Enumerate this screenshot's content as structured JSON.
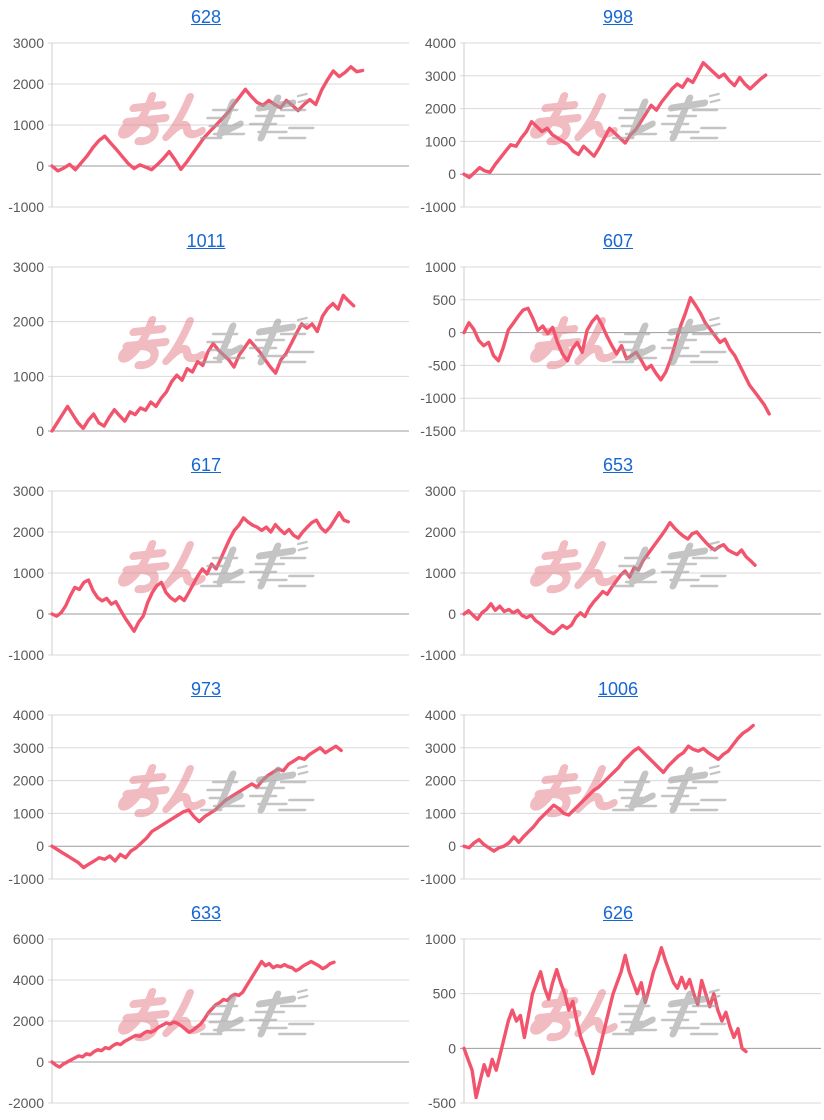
{
  "page": {
    "background": "#ffffff",
    "description": "grid of payout line graphs per machine number"
  },
  "palette": {
    "line_color": "#f2546d",
    "link_color": "#1767d2",
    "axis_label_color": "#595959",
    "gridline_color": "#dadada",
    "zero_line_color": "#9b9b9b",
    "axis_line_color": "#cccccc",
    "watermark_pink": "#e4858f",
    "watermark_gray": "#9e9e9e"
  },
  "watermark": {
    "name": "minrepo-logo-watermark",
    "text": "みんレポ"
  },
  "chart_data": [
    {
      "type": "line",
      "title": "628",
      "machine_no": "628",
      "grid": true,
      "ylim": [
        -1000,
        3000
      ],
      "yticks": [
        3000,
        2000,
        1000,
        0,
        -1000
      ],
      "x_span": 0.87,
      "values": [
        0,
        -120,
        -50,
        40,
        -90,
        80,
        250,
        450,
        620,
        730,
        560,
        400,
        230,
        60,
        -60,
        30,
        -30,
        -90,
        40,
        180,
        350,
        150,
        -80,
        100,
        300,
        500,
        700,
        850,
        1000,
        1150,
        1300,
        1500,
        1680,
        1870,
        1700,
        1550,
        1480,
        1600,
        1500,
        1420,
        1600,
        1480,
        1350,
        1500,
        1620,
        1500,
        1850,
        2100,
        2320,
        2180,
        2280,
        2420,
        2300,
        2330
      ]
    },
    {
      "type": "line",
      "title": "998",
      "machine_no": "998",
      "grid": true,
      "ylim": [
        -1000,
        4000
      ],
      "yticks": [
        4000,
        3000,
        2000,
        1000,
        0,
        -1000
      ],
      "x_span": 0.845,
      "values": [
        0,
        -100,
        50,
        200,
        100,
        60,
        300,
        500,
        700,
        900,
        850,
        1100,
        1300,
        1600,
        1450,
        1300,
        1400,
        1200,
        1100,
        1000,
        900,
        700,
        600,
        850,
        700,
        550,
        800,
        1100,
        1400,
        1250,
        1100,
        950,
        1200,
        1350,
        1600,
        1850,
        2100,
        1950,
        2200,
        2400,
        2600,
        2750,
        2650,
        2900,
        2800,
        3100,
        3400,
        3250,
        3100,
        2950,
        3050,
        2850,
        2700,
        2950,
        2750,
        2600,
        2750,
        2900,
        3020
      ]
    },
    {
      "type": "line",
      "title": "1011",
      "machine_no": "1011",
      "grid": true,
      "ylim": [
        0,
        3000
      ],
      "yticks": [
        3000,
        2000,
        1000,
        0
      ],
      "x_span": 0.845,
      "values": [
        0,
        150,
        300,
        450,
        300,
        150,
        50,
        200,
        310,
        150,
        90,
        250,
        390,
        280,
        180,
        350,
        300,
        420,
        380,
        530,
        450,
        600,
        715,
        900,
        1020,
        930,
        1140,
        1080,
        1270,
        1200,
        1450,
        1600,
        1480,
        1390,
        1300,
        1170,
        1390,
        1520,
        1660,
        1550,
        1440,
        1300,
        1170,
        1060,
        1300,
        1420,
        1600,
        1790,
        1960,
        1880,
        1960,
        1820,
        2100,
        2240,
        2330,
        2230,
        2480,
        2380,
        2290
      ]
    },
    {
      "type": "line",
      "title": "607",
      "machine_no": "607",
      "grid": true,
      "ylim": [
        -1500,
        1000
      ],
      "yticks": [
        1000,
        500,
        0,
        -500,
        -1000,
        -1500
      ],
      "x_span": 0.855,
      "values": [
        0,
        150,
        50,
        -120,
        -200,
        -150,
        -350,
        -430,
        -220,
        40,
        140,
        250,
        345,
        370,
        215,
        35,
        100,
        -15,
        80,
        -150,
        -325,
        -430,
        -250,
        -150,
        -300,
        35,
        165,
        250,
        120,
        -50,
        -195,
        -325,
        -200,
        -400,
        -350,
        -300,
        -420,
        -560,
        -500,
        -620,
        -720,
        -600,
        -400,
        -150,
        100,
        300,
        530,
        420,
        300,
        150,
        50,
        -50,
        -150,
        -100,
        -250,
        -350,
        -500,
        -650,
        -800,
        -900,
        -1000,
        -1100,
        -1240
      ]
    },
    {
      "type": "line",
      "title": "617",
      "machine_no": "617",
      "grid": true,
      "ylim": [
        -1000,
        3000
      ],
      "yticks": [
        3000,
        2000,
        1000,
        0,
        -1000
      ],
      "x_span": 0.83,
      "values": [
        0,
        -50,
        30,
        200,
        440,
        650,
        600,
        770,
        830,
        570,
        400,
        320,
        380,
        240,
        300,
        100,
        -90,
        -255,
        -420,
        -200,
        -50,
        280,
        525,
        690,
        770,
        525,
        400,
        320,
        420,
        330,
        525,
        730,
        935,
        1100,
        975,
        1220,
        1100,
        1345,
        1590,
        1835,
        2040,
        2165,
        2345,
        2245,
        2165,
        2120,
        2040,
        2120,
        2000,
        2180,
        2060,
        1960,
        2060,
        1920,
        1850,
        2000,
        2120,
        2230,
        2290,
        2100,
        2000,
        2120,
        2290,
        2470,
        2290,
        2250
      ]
    },
    {
      "type": "line",
      "title": "653",
      "machine_no": "653",
      "grid": true,
      "ylim": [
        -1000,
        3000
      ],
      "yticks": [
        3000,
        2000,
        1000,
        0,
        -1000
      ],
      "x_span": 0.815,
      "values": [
        0,
        80,
        -30,
        -130,
        30,
        110,
        250,
        90,
        190,
        60,
        110,
        30,
        90,
        -40,
        -90,
        -30,
        -160,
        -240,
        -330,
        -430,
        -480,
        -380,
        -280,
        -350,
        -270,
        -80,
        30,
        -60,
        150,
        300,
        420,
        550,
        480,
        650,
        800,
        950,
        1050,
        900,
        1130,
        1080,
        1300,
        1450,
        1600,
        1750,
        1900,
        2050,
        2230,
        2100,
        1990,
        1900,
        1830,
        1960,
        2000,
        1870,
        1750,
        1640,
        1560,
        1640,
        1690,
        1560,
        1500,
        1450,
        1560,
        1400,
        1300,
        1190
      ]
    },
    {
      "type": "line",
      "title": "973",
      "machine_no": "973",
      "grid": true,
      "ylim": [
        -1000,
        4000
      ],
      "yticks": [
        4000,
        3000,
        2000,
        1000,
        0,
        -1000
      ],
      "x_span": 0.81,
      "values": [
        0,
        -100,
        -200,
        -300,
        -400,
        -500,
        -650,
        -550,
        -450,
        -350,
        -400,
        -300,
        -450,
        -250,
        -350,
        -150,
        -50,
        100,
        250,
        450,
        550,
        650,
        750,
        850,
        950,
        1050,
        1100,
        900,
        750,
        900,
        1000,
        1100,
        1250,
        1400,
        1500,
        1600,
        1700,
        1800,
        1900,
        1800,
        2000,
        2150,
        2250,
        2350,
        2300,
        2500,
        2600,
        2700,
        2650,
        2800,
        2900,
        3000,
        2850,
        2950,
        3050,
        2920
      ]
    },
    {
      "type": "line",
      "title": "1006",
      "machine_no": "1006",
      "grid": true,
      "ylim": [
        -1000,
        4000
      ],
      "yticks": [
        4000,
        3000,
        2000,
        1000,
        0,
        -1000
      ],
      "x_span": 0.81,
      "values": [
        0,
        -50,
        100,
        200,
        50,
        -50,
        -150,
        -50,
        0,
        100,
        280,
        120,
        300,
        450,
        600,
        800,
        950,
        1100,
        1250,
        1150,
        1000,
        950,
        1100,
        1250,
        1400,
        1550,
        1700,
        1800,
        1950,
        2100,
        2250,
        2400,
        2600,
        2750,
        2900,
        3000,
        2850,
        2700,
        2550,
        2400,
        2250,
        2450,
        2600,
        2750,
        2850,
        3050,
        2950,
        2900,
        2980,
        2850,
        2750,
        2650,
        2800,
        2900,
        3100,
        3300,
        3450,
        3550,
        3680
      ]
    },
    {
      "type": "line",
      "title": "633",
      "machine_no": "633",
      "grid": true,
      "ylim": [
        -2000,
        6000
      ],
      "yticks": [
        6000,
        4000,
        2000,
        0,
        -2000
      ],
      "x_span": 0.79,
      "values": [
        0,
        -150,
        -250,
        -100,
        0,
        100,
        200,
        300,
        250,
        400,
        350,
        500,
        600,
        550,
        700,
        650,
        800,
        900,
        850,
        1000,
        1100,
        1200,
        1300,
        1250,
        1400,
        1500,
        1450,
        1550,
        1700,
        1800,
        1900,
        1850,
        1950,
        1880,
        1750,
        1600,
        1450,
        1550,
        1700,
        1850,
        2100,
        2400,
        2600,
        2800,
        2900,
        3050,
        3000,
        3200,
        3300,
        3250,
        3400,
        3700,
        4000,
        4300,
        4600,
        4900,
        4700,
        4800,
        4600,
        4700,
        4650,
        4750,
        4650,
        4600,
        4450,
        4550,
        4700,
        4800,
        4900,
        4800,
        4700,
        4550,
        4650,
        4800,
        4870
      ]
    },
    {
      "type": "line",
      "title": "626",
      "machine_no": "626",
      "grid": true,
      "ylim": [
        -500,
        1000
      ],
      "yticks": [
        1000,
        500,
        0,
        -500
      ],
      "x_span": 0.79,
      "values": [
        0,
        -100,
        -200,
        -450,
        -300,
        -150,
        -250,
        -100,
        -200,
        -50,
        100,
        250,
        350,
        250,
        300,
        100,
        300,
        500,
        600,
        700,
        550,
        450,
        600,
        720,
        600,
        500,
        350,
        430,
        250,
        100,
        0,
        -100,
        -230,
        -100,
        50,
        200,
        350,
        500,
        600,
        700,
        850,
        700,
        600,
        500,
        600,
        420,
        550,
        700,
        800,
        920,
        800,
        700,
        600,
        550,
        650,
        550,
        630,
        500,
        400,
        620,
        500,
        380,
        500,
        350,
        250,
        330,
        200,
        100,
        180,
        0,
        -30
      ]
    }
  ]
}
